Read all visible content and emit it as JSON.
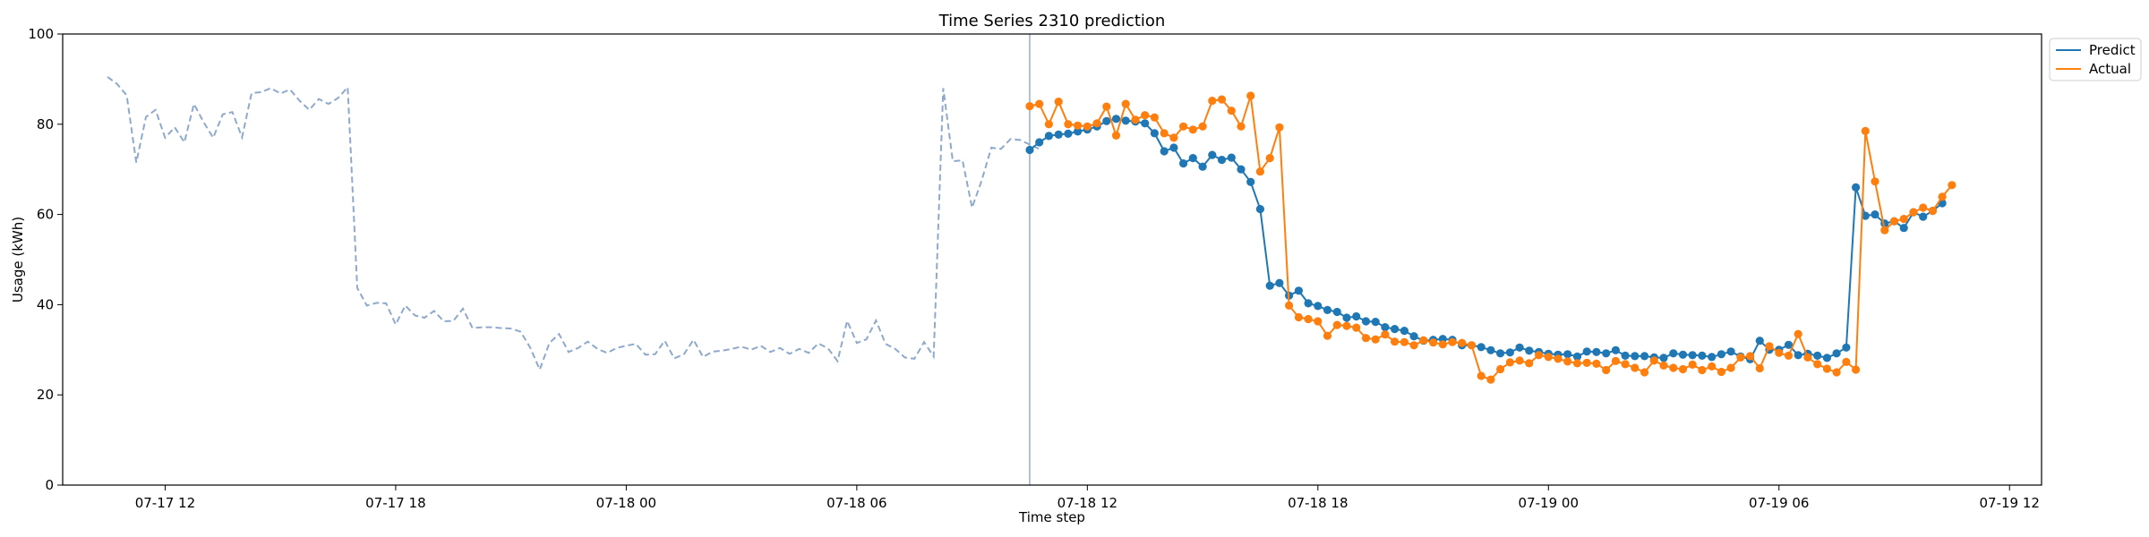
{
  "chart_data": {
    "type": "line",
    "title": "Time Series 2310 prediction",
    "xlabel": "Time step",
    "ylabel": "Usage (kWh)",
    "ylim": [
      0,
      100
    ],
    "yticks": [
      0,
      20,
      40,
      60,
      80,
      100
    ],
    "xlim": [
      "07-17 09:20",
      "07-19 12:50"
    ],
    "xticks": [
      {
        "t": "07-17 12:00",
        "label": "07-17 12"
      },
      {
        "t": "07-17 18:00",
        "label": "07-17 18"
      },
      {
        "t": "07-18 00:00",
        "label": "07-18 00"
      },
      {
        "t": "07-18 06:00",
        "label": "07-18 06"
      },
      {
        "t": "07-18 12:00",
        "label": "07-18 12"
      },
      {
        "t": "07-18 18:00",
        "label": "07-18 18"
      },
      {
        "t": "07-19 00:00",
        "label": "07-19 00"
      },
      {
        "t": "07-19 06:00",
        "label": "07-19 06"
      },
      {
        "t": "07-19 12:00",
        "label": "07-19 12"
      }
    ],
    "grid": false,
    "legend_position": "top-right",
    "forecast_start": "07-18 10:30",
    "history": {
      "start": "07-17 10:30",
      "interval_minutes": 15,
      "color": "#8fa9cc",
      "values": [
        90.5,
        88.9,
        86.4,
        71.5,
        81.6,
        83.2,
        77.0,
        79.3,
        76.0,
        84.5,
        80.5,
        77.0,
        82.2,
        82.7,
        77.1,
        86.9,
        87.1,
        88.0,
        86.8,
        87.7,
        85.2,
        83.2,
        85.6,
        84.5,
        85.8,
        88.2,
        43.7,
        39.8,
        40.4,
        40.3,
        35.6,
        39.8,
        37.6,
        37.1,
        38.6,
        36.3,
        36.4,
        39.1,
        34.8,
        35.0,
        35.0,
        34.8,
        34.7,
        34.0,
        30.5,
        25.6,
        31.5,
        33.5,
        29.5,
        30.4,
        31.8,
        30.2,
        29.3,
        30.4,
        30.9,
        31.3,
        28.9,
        29.0,
        32.0,
        28.1,
        29.0,
        32.2,
        28.4,
        29.6,
        29.8,
        30.2,
        30.7,
        30.0,
        30.9,
        29.5,
        30.4,
        29.1,
        30.2,
        29.3,
        31.4,
        30.3,
        27.5,
        36.4,
        31.5,
        32.3,
        36.5,
        31.3,
        30.2,
        28.3,
        28.0,
        31.7,
        28.5,
        88.0,
        71.8,
        72.0,
        61.5,
        67.5,
        74.8,
        74.5,
        76.7,
        76.5,
        75.5,
        74.5
      ]
    },
    "series": [
      {
        "name": "Predict",
        "color": "#1f77b4",
        "start": "07-18 10:30",
        "interval_minutes": 15,
        "values": [
          74.3,
          76.0,
          77.4,
          77.7,
          77.9,
          78.4,
          78.8,
          79.5,
          80.7,
          81.2,
          80.8,
          80.6,
          80.2,
          78.0,
          74.0,
          74.8,
          71.3,
          72.5,
          70.6,
          73.2,
          72.1,
          72.6,
          70.0,
          67.2,
          61.2,
          44.2,
          44.8,
          42.0,
          43.1,
          40.3,
          39.7,
          38.8,
          38.4,
          37.1,
          37.4,
          36.3,
          36.2,
          35.0,
          34.6,
          34.2,
          33.0,
          32.0,
          32.2,
          32.4,
          32.2,
          31.0,
          31.0,
          30.6,
          29.9,
          29.2,
          29.4,
          30.5,
          29.8,
          29.5,
          29.1,
          28.9,
          29.0,
          28.5,
          29.6,
          29.5,
          29.2,
          29.9,
          28.7,
          28.6,
          28.6,
          28.3,
          28.2,
          29.2,
          28.9,
          28.8,
          28.7,
          28.4,
          29.0,
          29.6,
          28.5,
          27.9,
          32.0,
          30.0,
          30.0,
          31.1,
          28.8,
          29.1,
          28.7,
          28.2,
          29.2,
          30.5,
          66.0,
          59.7,
          60.0,
          58.0,
          58.5,
          57.0,
          60.5,
          59.5,
          60.8,
          62.5
        ]
      },
      {
        "name": "Actual",
        "color": "#ff7f0e",
        "start": "07-18 10:30",
        "interval_minutes": 15,
        "values": [
          84.0,
          84.5,
          80.0,
          85.0,
          80.0,
          79.7,
          79.5,
          80.2,
          83.9,
          77.5,
          84.5,
          81.0,
          82.0,
          81.5,
          78.0,
          77.0,
          79.5,
          78.8,
          79.5,
          85.2,
          85.5,
          83.0,
          79.5,
          86.3,
          69.5,
          72.5,
          79.3,
          39.8,
          37.2,
          36.8,
          36.3,
          33.1,
          35.5,
          35.3,
          34.9,
          32.6,
          32.3,
          33.4,
          31.8,
          31.7,
          31.0,
          32.1,
          31.6,
          31.2,
          31.7,
          31.5,
          31.0,
          24.2,
          23.4,
          25.7,
          27.2,
          27.6,
          27.0,
          28.8,
          28.4,
          28.0,
          27.4,
          27.0,
          27.1,
          26.9,
          25.5,
          27.5,
          26.8,
          26.0,
          25.0,
          27.6,
          26.5,
          26.0,
          25.7,
          26.7,
          25.5,
          26.3,
          25.1,
          26.0,
          28.3,
          28.6,
          25.9,
          30.8,
          29.3,
          28.7,
          33.5,
          28.3,
          26.8,
          25.8,
          25.0,
          27.3,
          25.6,
          78.5,
          67.3,
          56.5,
          58.5,
          59.0,
          60.5,
          61.5,
          60.8,
          63.9,
          66.5
        ]
      }
    ]
  }
}
